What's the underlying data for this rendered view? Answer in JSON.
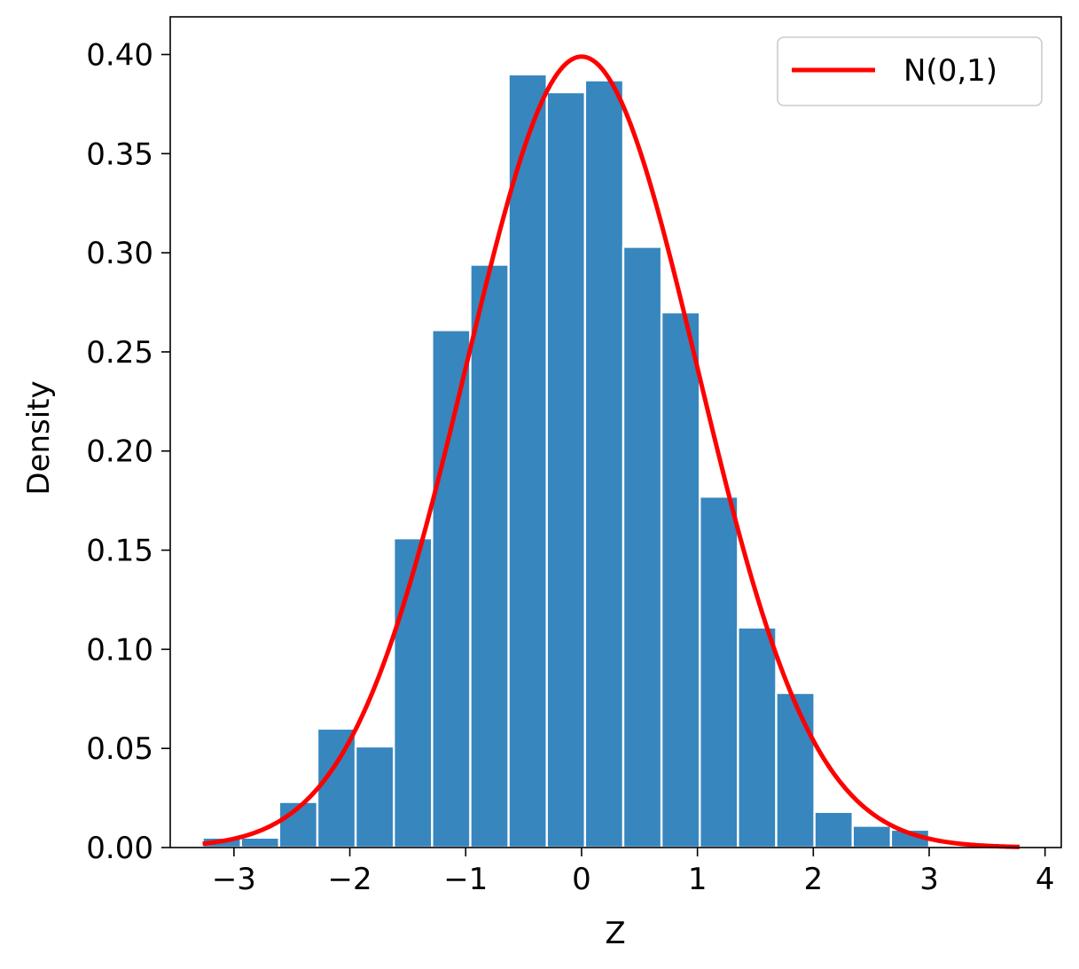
{
  "chart_data": {
    "type": "bar",
    "title": "",
    "xlabel": "Z",
    "ylabel": "Density",
    "xlim": [
      -3.55,
      4.14
    ],
    "ylim": [
      0.0,
      0.419
    ],
    "grid": false,
    "legend_position": "top-right",
    "bin_width": 0.33,
    "histogram": {
      "color": "#3786BE",
      "edge_color": "#ffffff",
      "bins": [
        {
          "x0": -3.27,
          "x1": -2.94,
          "density": 0.005
        },
        {
          "x0": -2.94,
          "x1": -2.61,
          "density": 0.005
        },
        {
          "x0": -2.61,
          "x1": -2.28,
          "density": 0.023
        },
        {
          "x0": -2.28,
          "x1": -1.95,
          "density": 0.06
        },
        {
          "x0": -1.95,
          "x1": -1.62,
          "density": 0.051
        },
        {
          "x0": -1.62,
          "x1": -1.29,
          "density": 0.156
        },
        {
          "x0": -1.29,
          "x1": -0.96,
          "density": 0.261
        },
        {
          "x0": -0.96,
          "x1": -0.63,
          "density": 0.294
        },
        {
          "x0": -0.63,
          "x1": -0.3,
          "density": 0.39
        },
        {
          "x0": -0.3,
          "x1": 0.03,
          "density": 0.381
        },
        {
          "x0": 0.03,
          "x1": 0.36,
          "density": 0.387
        },
        {
          "x0": 0.36,
          "x1": 0.69,
          "density": 0.303
        },
        {
          "x0": 0.69,
          "x1": 1.02,
          "density": 0.27
        },
        {
          "x0": 1.02,
          "x1": 1.35,
          "density": 0.177
        },
        {
          "x0": 1.35,
          "x1": 1.68,
          "density": 0.111
        },
        {
          "x0": 1.68,
          "x1": 2.01,
          "density": 0.078
        },
        {
          "x0": 2.01,
          "x1": 2.34,
          "density": 0.018
        },
        {
          "x0": 2.34,
          "x1": 2.67,
          "density": 0.011
        },
        {
          "x0": 2.67,
          "x1": 3.0,
          "density": 0.009
        }
      ]
    },
    "series": [
      {
        "name": "N(0,1)",
        "type": "line",
        "color": "#FF0000",
        "function": "standard_normal_pdf",
        "x_range": [
          -3.27,
          3.78
        ]
      }
    ],
    "x_ticks": [
      {
        "value": -3,
        "label": "−3"
      },
      {
        "value": -2,
        "label": "−2"
      },
      {
        "value": -1,
        "label": "−1"
      },
      {
        "value": 0,
        "label": "0"
      },
      {
        "value": 1,
        "label": "1"
      },
      {
        "value": 2,
        "label": "2"
      },
      {
        "value": 3,
        "label": "3"
      },
      {
        "value": 4,
        "label": "4"
      }
    ],
    "y_ticks": [
      {
        "value": 0.0,
        "label": "0.00"
      },
      {
        "value": 0.05,
        "label": "0.05"
      },
      {
        "value": 0.1,
        "label": "0.10"
      },
      {
        "value": 0.15,
        "label": "0.15"
      },
      {
        "value": 0.2,
        "label": "0.20"
      },
      {
        "value": 0.25,
        "label": "0.25"
      },
      {
        "value": 0.3,
        "label": "0.30"
      },
      {
        "value": 0.35,
        "label": "0.35"
      },
      {
        "value": 0.4,
        "label": "0.40"
      }
    ]
  }
}
